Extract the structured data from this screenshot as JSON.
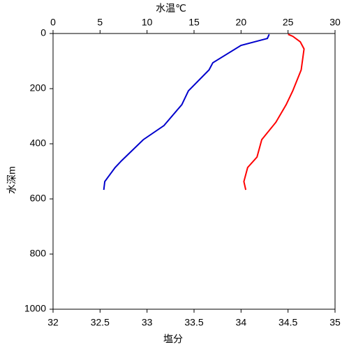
{
  "chart_data": {
    "type": "line",
    "x_label": "塩分",
    "x2_label": "水温℃",
    "y_label": "水深m",
    "x_label_color": "#cc0000",
    "x2_label_color": "#0000cc",
    "xlim": [
      32,
      35
    ],
    "xticks": [
      32,
      32.5,
      33,
      33.5,
      34,
      34.5,
      35
    ],
    "x2lim": [
      0,
      30
    ],
    "x2ticks": [
      0,
      5,
      10,
      15,
      20,
      25,
      30
    ],
    "ylim": [
      0,
      1000
    ],
    "yticks": [
      0,
      200,
      400,
      600,
      800,
      1000
    ],
    "y_inverted": true,
    "series": [
      {
        "color": "#0000cc",
        "axis": "x2",
        "x": [
          23.0,
          22.8,
          20.0,
          17.0,
          16.6,
          14.4,
          13.7,
          11.8,
          9.6,
          7.3,
          6.6,
          5.5,
          5.4
        ],
        "y": [
          3,
          18,
          43,
          106,
          132,
          208,
          258,
          334,
          385,
          461,
          486,
          537,
          567
        ]
      },
      {
        "color": "#ff0000",
        "axis": "x",
        "x": [
          34.5,
          34.55,
          34.63,
          34.67,
          34.64,
          34.55,
          34.48,
          34.37,
          34.22,
          34.17,
          34.07,
          34.03,
          34.05
        ],
        "y": [
          3,
          10,
          30,
          56,
          132,
          208,
          258,
          322,
          385,
          448,
          486,
          537,
          567
        ]
      }
    ]
  }
}
